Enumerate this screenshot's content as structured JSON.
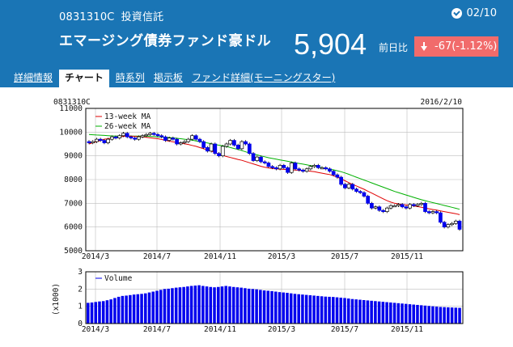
{
  "header": {
    "code": "0831310C",
    "type": "投資信託",
    "date": "02/10",
    "fund_name": "エマージング債券ファンド豪ドル",
    "price": "5,904",
    "prev_label": "前日比",
    "change": "-67(-1.12%)"
  },
  "tabs": [
    {
      "label": "詳細情報",
      "active": false
    },
    {
      "label": "チャート",
      "active": true
    },
    {
      "label": "時系列",
      "active": false
    },
    {
      "label": "掲示板",
      "active": false
    },
    {
      "label": "ファンド詳細(モーニングスター)",
      "active": false
    }
  ],
  "colors": {
    "header_bg": "#1a75b5",
    "change_bg": "#f16b6b",
    "candle": "#0000ee",
    "ma13": "#e00000",
    "ma26": "#00b000",
    "volume": "#0000ee"
  },
  "chart_data": [
    {
      "type": "line",
      "chart_kind": "candlestick",
      "code_label": "0831310C",
      "date_label": "2016/2/10",
      "legend": [
        "13-week MA",
        "26-week MA"
      ],
      "legend_position": "top-left",
      "x_ticks": [
        "2014/3",
        "2014/7",
        "2014/11",
        "2015/3",
        "2015/7",
        "2015/11"
      ],
      "y_ticks": [
        "11000",
        "10000",
        "9000",
        "8000",
        "7000",
        "6000",
        "5000"
      ],
      "ylim": [
        5000,
        11000
      ],
      "grid": true,
      "series": [
        {
          "name": "Price",
          "values": [
            9550,
            9600,
            9700,
            9650,
            9550,
            9700,
            9800,
            9750,
            9850,
            9950,
            9800,
            9750,
            9700,
            9800,
            9850,
            9900,
            9950,
            9900,
            9850,
            9800,
            9650,
            9750,
            9700,
            9500,
            9550,
            9600,
            9700,
            9850,
            9700,
            9600,
            9350,
            9200,
            9500,
            9100,
            9000,
            9400,
            9500,
            9650,
            9450,
            9300,
            9600,
            9500,
            9100,
            8800,
            8950,
            8750,
            8700,
            8550,
            8500,
            8450,
            8600,
            8500,
            8300,
            8700,
            8450,
            8400,
            8350,
            8450,
            8550,
            8600,
            8500,
            8500,
            8450,
            8350,
            8200,
            8100,
            7800,
            7650,
            7800,
            7600,
            7500,
            7450,
            7300,
            7000,
            6800,
            6850,
            6700,
            6650,
            6800,
            6900,
            6900,
            6950,
            6850,
            6800,
            6950,
            6900,
            6950,
            7000,
            6650,
            6600,
            6650,
            6600,
            6200,
            6000,
            6100,
            6150,
            6250,
            5904
          ]
        },
        {
          "name": "13-week MA",
          "values": [
            9500,
            9550,
            9600,
            9650,
            9700,
            9720,
            9750,
            9780,
            9800,
            9820,
            9830,
            9830,
            9820,
            9810,
            9800,
            9780,
            9760,
            9740,
            9720,
            9690,
            9650,
            9620,
            9590,
            9560,
            9540,
            9510,
            9480,
            9440,
            9400,
            9350,
            9300,
            9250,
            9200,
            9140,
            9080,
            9020,
            8970,
            8930,
            8890,
            8850,
            8810,
            8760,
            8710,
            8660,
            8610,
            8560,
            8520,
            8490,
            8470,
            8450,
            8440,
            8430,
            8420,
            8410,
            8400,
            8390,
            8380,
            8370,
            8350,
            8330,
            8300,
            8270,
            8240,
            8210,
            8160,
            8100,
            8030,
            7950,
            7870,
            7800,
            7730,
            7660,
            7590,
            7510,
            7430,
            7350,
            7270,
            7190,
            7110,
            7050,
            7000,
            6970,
            6950,
            6930,
            6910,
            6890,
            6860,
            6830,
            6800,
            6770,
            6740,
            6710,
            6680,
            6650,
            6620,
            6590,
            6560,
            6520
          ]
        },
        {
          "name": "26-week MA",
          "values": [
            9900,
            9890,
            9880,
            9870,
            9860,
            9850,
            9840,
            9830,
            9830,
            9830,
            9830,
            9830,
            9830,
            9830,
            9830,
            9830,
            9820,
            9810,
            9800,
            9790,
            9780,
            9770,
            9760,
            9740,
            9720,
            9700,
            9680,
            9660,
            9630,
            9600,
            9570,
            9540,
            9510,
            9480,
            9450,
            9420,
            9390,
            9350,
            9310,
            9270,
            9220,
            9170,
            9120,
            9080,
            9040,
            9000,
            8960,
            8920,
            8890,
            8860,
            8830,
            8800,
            8770,
            8740,
            8710,
            8680,
            8650,
            8620,
            8590,
            8560,
            8530,
            8500,
            8470,
            8440,
            8410,
            8370,
            8330,
            8280,
            8220,
            8160,
            8100,
            8040,
            7980,
            7920,
            7860,
            7800,
            7740,
            7680,
            7620,
            7560,
            7500,
            7450,
            7400,
            7350,
            7300,
            7250,
            7200,
            7150,
            7110,
            7070,
            7030,
            6990,
            6950,
            6910,
            6870,
            6830,
            6790,
            6750
          ]
        }
      ]
    },
    {
      "type": "bar",
      "legend": [
        "Volume"
      ],
      "legend_position": "top-left",
      "ylabel": "(x1000)",
      "x_ticks": [
        "2014/3",
        "2014/7",
        "2014/11",
        "2015/3",
        "2015/7",
        "2015/11"
      ],
      "y_ticks": [
        "3",
        "2",
        "1",
        "0"
      ],
      "ylim": [
        0,
        3
      ],
      "series": [
        {
          "name": "Volume",
          "values": [
            1.2,
            1.22,
            1.25,
            1.28,
            1.3,
            1.35,
            1.4,
            1.48,
            1.55,
            1.6,
            1.62,
            1.65,
            1.68,
            1.7,
            1.72,
            1.75,
            1.8,
            1.85,
            1.9,
            1.95,
            2.0,
            2.02,
            2.05,
            2.08,
            2.1,
            2.12,
            2.15,
            2.18,
            2.2,
            2.22,
            2.18,
            2.15,
            2.12,
            2.1,
            2.12,
            2.15,
            2.18,
            2.15,
            2.12,
            2.1,
            2.08,
            2.05,
            2.02,
            2.0,
            1.98,
            1.95,
            1.92,
            1.9,
            1.88,
            1.85,
            1.82,
            1.8,
            1.78,
            1.75,
            1.72,
            1.7,
            1.68,
            1.66,
            1.64,
            1.62,
            1.6,
            1.58,
            1.56,
            1.55,
            1.54,
            1.52,
            1.5,
            1.48,
            1.45,
            1.42,
            1.4,
            1.38,
            1.36,
            1.34,
            1.32,
            1.3,
            1.28,
            1.26,
            1.24,
            1.22,
            1.2,
            1.18,
            1.16,
            1.14,
            1.12,
            1.1,
            1.08,
            1.06,
            1.04,
            1.02,
            1.0,
            0.98,
            0.96,
            0.95,
            0.94,
            0.93,
            0.92,
            0.91
          ]
        }
      ]
    }
  ]
}
